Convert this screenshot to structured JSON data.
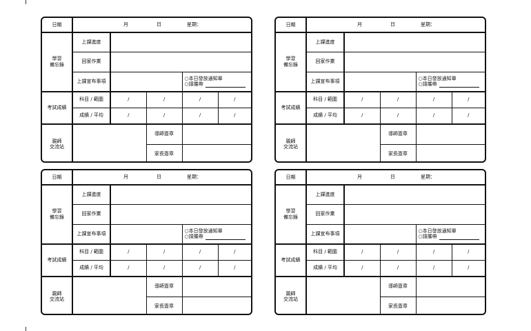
{
  "cards_count": 4,
  "form": {
    "date_label": "日期",
    "month": "月",
    "day": "日",
    "weekday": "星期：",
    "study_memo": "學習\n備忘錄",
    "progress": "上課進度",
    "homework": "回家作業",
    "announcement": "上課宣布事項",
    "notice_option1": "○本日發放通知單",
    "notice_option2": "○請攜帶",
    "exam": "考試成績",
    "subject_range": "科目 / 範圍",
    "score_average": "成績 / 平均",
    "slash": "/",
    "exchange": "親師\n交流站",
    "teacher_sign": "導師簽章",
    "parent_sign": "家長簽章"
  }
}
